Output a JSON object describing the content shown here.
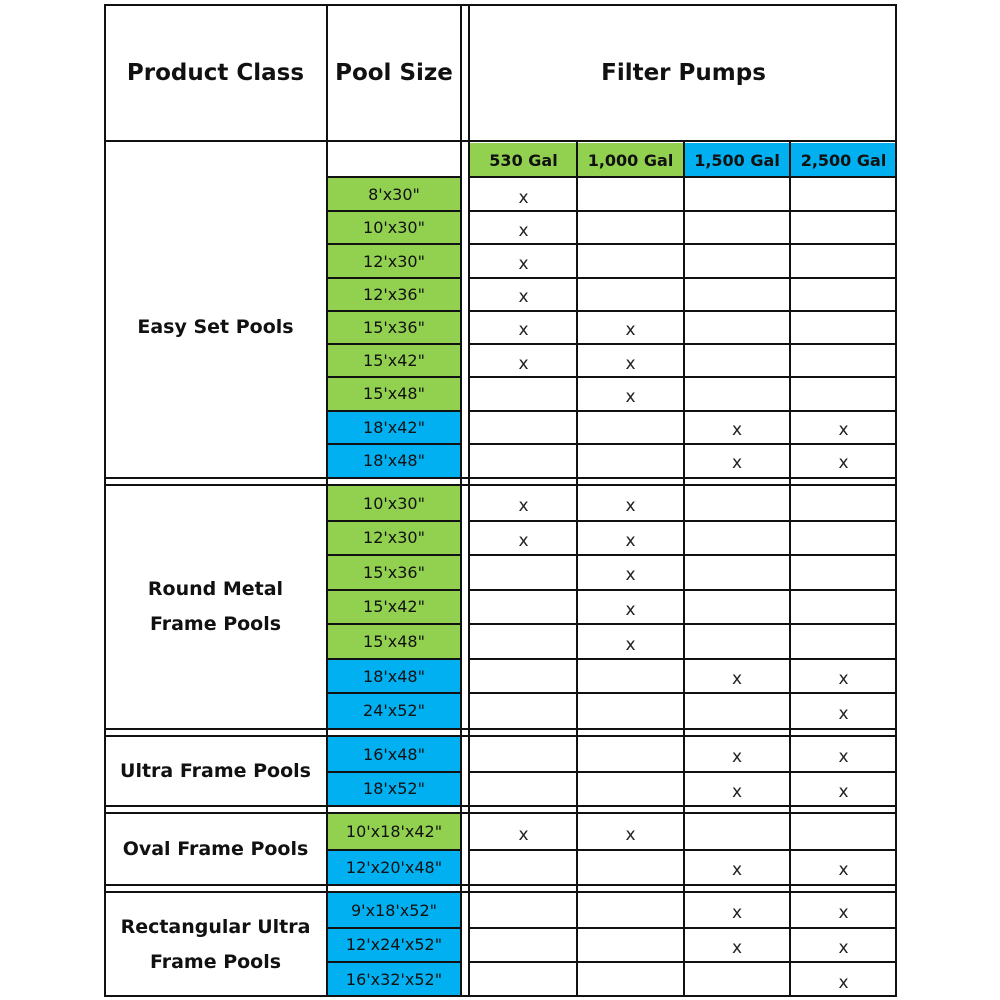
{
  "headers": {
    "product_class": "Product Class",
    "pool_size": "Pool Size",
    "filter_pumps": "Filter Pumps"
  },
  "pumps": [
    {
      "label": "530 Gal",
      "color": "#92d050"
    },
    {
      "label": "1,000 Gal",
      "color": "#92d050"
    },
    {
      "label": "1,500 Gal",
      "color": "#00b0f0"
    },
    {
      "label": "2,500 Gal",
      "color": "#00b0f0"
    }
  ],
  "colors": {
    "green": "#92d050",
    "blue": "#00b0f0"
  },
  "mark_symbol": "x",
  "groups": [
    {
      "name": "Easy Set Pools",
      "rows": [
        {
          "size": "8'x30\"",
          "color": "green",
          "marks": [
            1,
            0,
            0,
            0
          ]
        },
        {
          "size": "10'x30\"",
          "color": "green",
          "marks": [
            1,
            0,
            0,
            0
          ]
        },
        {
          "size": "12'x30\"",
          "color": "green",
          "marks": [
            1,
            0,
            0,
            0
          ]
        },
        {
          "size": "12'x36\"",
          "color": "green",
          "marks": [
            1,
            0,
            0,
            0
          ]
        },
        {
          "size": "15'x36\"",
          "color": "green",
          "marks": [
            1,
            1,
            0,
            0
          ]
        },
        {
          "size": "15'x42\"",
          "color": "green",
          "marks": [
            1,
            1,
            0,
            0
          ]
        },
        {
          "size": "15'x48\"",
          "color": "green",
          "marks": [
            0,
            1,
            0,
            0
          ]
        },
        {
          "size": "18'x42\"",
          "color": "blue",
          "marks": [
            0,
            0,
            1,
            1
          ]
        },
        {
          "size": "18'x48\"",
          "color": "blue",
          "marks": [
            0,
            0,
            1,
            1
          ]
        }
      ]
    },
    {
      "name": "Round Metal Frame Pools",
      "rows": [
        {
          "size": "10'x30\"",
          "color": "green",
          "marks": [
            1,
            1,
            0,
            0
          ]
        },
        {
          "size": "12'x30\"",
          "color": "green",
          "marks": [
            1,
            1,
            0,
            0
          ]
        },
        {
          "size": "15'x36\"",
          "color": "green",
          "marks": [
            0,
            1,
            0,
            0
          ]
        },
        {
          "size": "15'x42\"",
          "color": "green",
          "marks": [
            0,
            1,
            0,
            0
          ]
        },
        {
          "size": "15'x48\"",
          "color": "green",
          "marks": [
            0,
            1,
            0,
            0
          ]
        },
        {
          "size": "18'x48\"",
          "color": "blue",
          "marks": [
            0,
            0,
            1,
            1
          ]
        },
        {
          "size": "24'x52\"",
          "color": "blue",
          "marks": [
            0,
            0,
            0,
            1
          ]
        }
      ]
    },
    {
      "name": "Ultra Frame Pools",
      "rows": [
        {
          "size": "16'x48\"",
          "color": "blue",
          "marks": [
            0,
            0,
            1,
            1
          ]
        },
        {
          "size": "18'x52\"",
          "color": "blue",
          "marks": [
            0,
            0,
            1,
            1
          ]
        }
      ]
    },
    {
      "name": "Oval Frame Pools",
      "rows": [
        {
          "size": "10'x18'x42\"",
          "color": "green",
          "marks": [
            1,
            1,
            0,
            0
          ]
        },
        {
          "size": "12'x20'x48\"",
          "color": "blue",
          "marks": [
            0,
            0,
            1,
            1
          ]
        }
      ]
    },
    {
      "name": "Rectangular Ultra Frame Pools",
      "rows": [
        {
          "size": "9'x18'x52\"",
          "color": "blue",
          "marks": [
            0,
            0,
            1,
            1
          ]
        },
        {
          "size": "12'x24'x52\"",
          "color": "blue",
          "marks": [
            0,
            0,
            1,
            1
          ]
        },
        {
          "size": "16'x32'x52\"",
          "color": "blue",
          "marks": [
            0,
            0,
            0,
            1
          ]
        }
      ]
    }
  ]
}
